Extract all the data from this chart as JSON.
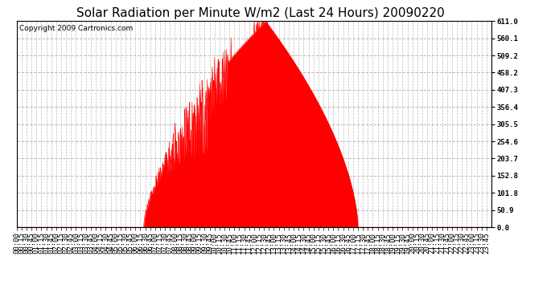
{
  "title": "Solar Radiation per Minute W/m2 (Last 24 Hours) 20090220",
  "copyright": "Copyright 2009 Cartronics.com",
  "bg_color": "#ffffff",
  "plot_bg_color": "#ffffff",
  "fill_color": "#ff0000",
  "line_color": "#ff0000",
  "dashed_line_color": "#ff0000",
  "grid_color": "#bbbbbb",
  "ylim": [
    0.0,
    611.0
  ],
  "yticks": [
    0.0,
    50.9,
    101.8,
    152.8,
    203.7,
    254.6,
    305.5,
    356.4,
    407.3,
    458.2,
    509.2,
    560.1,
    611.0
  ],
  "title_fontsize": 11,
  "copyright_fontsize": 6.5,
  "tick_fontsize": 6.5,
  "total_minutes": 1440,
  "sunrise_minute": 385,
  "sunset_minute": 1035,
  "peak_minute": 755,
  "peak_value": 611.0
}
